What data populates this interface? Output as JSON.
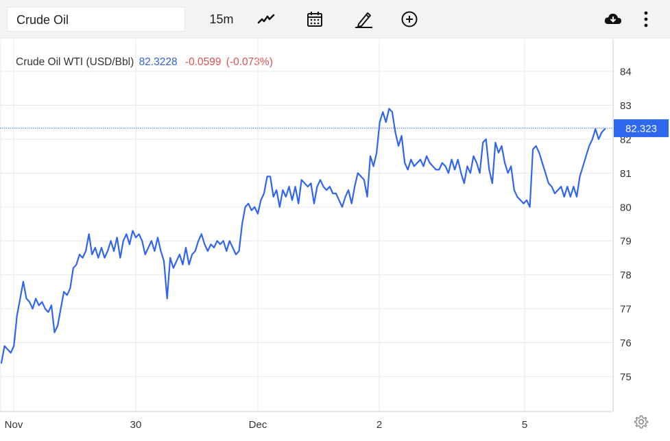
{
  "toolbar": {
    "symbol_value": "Crude Oil",
    "interval_label": "15m",
    "icons": [
      "line-chart-icon",
      "calendar-icon",
      "pencil-icon",
      "plus-circle-icon",
      "cloud-download-icon",
      "more-vertical-icon",
      "gear-icon"
    ]
  },
  "legend": {
    "name": "Crude Oil WTI (USD/Bbl)",
    "price": "82.3228",
    "change": "-0.0599",
    "change_pct": "(-0.073%)"
  },
  "colors": {
    "line": "#2f64f0",
    "price_badge": "#2d68ee",
    "negative": "#e04f4f",
    "grid": "#e8e8e8"
  },
  "chart_data": {
    "type": "line",
    "series": [
      {
        "values": [
          75.4,
          75.9,
          75.8,
          75.7,
          75.9,
          76.8,
          77.3,
          77.8,
          77.3,
          77.2,
          77.0,
          77.3,
          77.1,
          77.2,
          77.0,
          76.9,
          77.1,
          76.3,
          76.5,
          77.0,
          77.5,
          77.4,
          77.6,
          78.2,
          78.3,
          78.6,
          78.5,
          78.7,
          79.2,
          78.6,
          78.8,
          78.5,
          78.8,
          78.5,
          78.7,
          79.0,
          78.7,
          79.1,
          78.5,
          79.0,
          79.2,
          78.9,
          79.3,
          79.1,
          79.2,
          79.0,
          78.6,
          78.8,
          79.0,
          78.7,
          79.1,
          78.7,
          78.4,
          77.3,
          78.5,
          78.2,
          78.4,
          78.6,
          78.3,
          78.8,
          78.3,
          78.6,
          78.7,
          79.0,
          79.2,
          78.9,
          78.7,
          78.9,
          78.8,
          79.0,
          78.9,
          79.0,
          78.7,
          79.0,
          78.8,
          78.6,
          78.7,
          79.5,
          80.0,
          80.1,
          79.9,
          80.0,
          79.8,
          80.2,
          80.4,
          80.9,
          80.9,
          80.3,
          80.5,
          80.0,
          80.5,
          80.3,
          80.6,
          80.2,
          80.6,
          80.1,
          80.8,
          80.7,
          80.6,
          80.7,
          80.1,
          80.6,
          80.8,
          80.6,
          80.5,
          80.6,
          80.4,
          80.4,
          80.2,
          80.0,
          80.3,
          80.5,
          80.1,
          80.6,
          81.0,
          80.9,
          80.8,
          80.3,
          81.5,
          81.2,
          81.6,
          82.5,
          82.8,
          82.5,
          82.9,
          82.8,
          82.2,
          81.8,
          82.1,
          81.3,
          81.1,
          81.4,
          81.2,
          81.3,
          81.4,
          81.2,
          81.5,
          81.3,
          81.2,
          81.1,
          81.1,
          81.3,
          81.2,
          81.0,
          81.4,
          81.1,
          81.4,
          81.0,
          80.7,
          81.2,
          81.0,
          81.5,
          81.3,
          81.0,
          81.9,
          82.0,
          81.1,
          80.7,
          81.9,
          81.6,
          81.8,
          81.3,
          81.0,
          81.2,
          80.5,
          80.3,
          80.2,
          80.1,
          80.2,
          80.0,
          81.7,
          81.8,
          81.6,
          81.3,
          81.0,
          80.7,
          80.6,
          80.4,
          80.5,
          80.6,
          80.3,
          80.6,
          80.3,
          80.6,
          80.3,
          80.9,
          81.2,
          81.5,
          81.8,
          82.0,
          82.3,
          82.0,
          82.2,
          82.3
        ]
      }
    ],
    "x_ticks": [
      "Nov",
      "30",
      "Dec",
      "2",
      "5"
    ],
    "y_ticks": [
      75,
      76,
      77,
      78,
      79,
      80,
      81,
      82,
      83,
      84
    ],
    "ylim": [
      74.1,
      84.9
    ],
    "last_value_label": "82.323",
    "last_value": 82.323,
    "grid": true
  }
}
